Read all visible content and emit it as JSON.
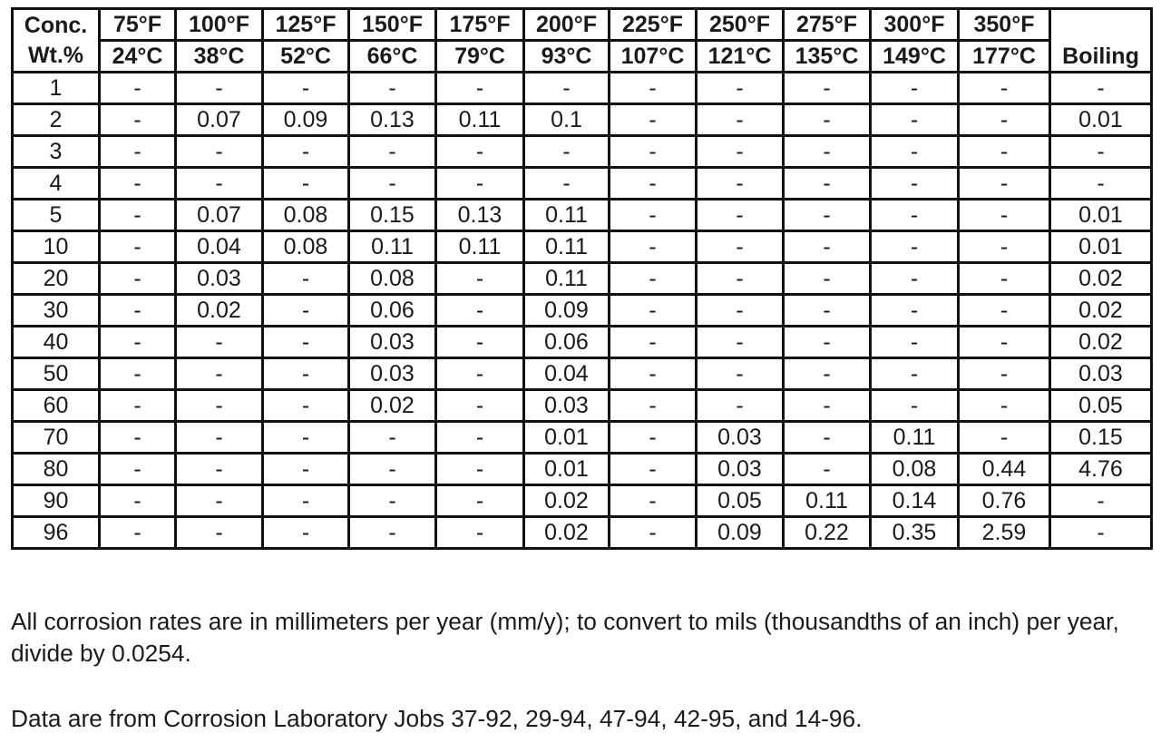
{
  "table": {
    "header": {
      "conc": [
        "Conc.",
        "Wt.%"
      ],
      "columns": [
        {
          "f": "75°F",
          "c": "24°C"
        },
        {
          "f": "100°F",
          "c": "38°C"
        },
        {
          "f": "125°F",
          "c": "52°C"
        },
        {
          "f": "150°F",
          "c": "66°C"
        },
        {
          "f": "175°F",
          "c": "79°C"
        },
        {
          "f": "200°F",
          "c": "93°C"
        },
        {
          "f": "225°F",
          "c": "107°C"
        },
        {
          "f": "250°F",
          "c": "121°C"
        },
        {
          "f": "275°F",
          "c": "135°C"
        },
        {
          "f": "300°F",
          "c": "149°C"
        },
        {
          "f": "350°F",
          "c": "177°C"
        }
      ],
      "boiling": "Boiling"
    },
    "rows": [
      [
        "1",
        "-",
        "-",
        "-",
        "-",
        "-",
        "-",
        "-",
        "-",
        "-",
        "-",
        "-",
        "-"
      ],
      [
        "2",
        "-",
        "0.07",
        "0.09",
        "0.13",
        "0.11",
        "0.1",
        "-",
        "-",
        "-",
        "-",
        "-",
        "0.01"
      ],
      [
        "3",
        "-",
        "-",
        "-",
        "-",
        "-",
        "-",
        "-",
        "-",
        "-",
        "-",
        "-",
        "-"
      ],
      [
        "4",
        "-",
        "-",
        "-",
        "-",
        "-",
        "-",
        "-",
        "-",
        "-",
        "-",
        "-",
        "-"
      ],
      [
        "5",
        "-",
        "0.07",
        "0.08",
        "0.15",
        "0.13",
        "0.11",
        "-",
        "-",
        "-",
        "-",
        "-",
        "0.01"
      ],
      [
        "10",
        "-",
        "0.04",
        "0.08",
        "0.11",
        "0.11",
        "0.11",
        "-",
        "-",
        "-",
        "-",
        "-",
        "0.01"
      ],
      [
        "20",
        "-",
        "0.03",
        "-",
        "0.08",
        "-",
        "0.11",
        "-",
        "-",
        "-",
        "-",
        "-",
        "0.02"
      ],
      [
        "30",
        "-",
        "0.02",
        "-",
        "0.06",
        "-",
        "0.09",
        "-",
        "-",
        "-",
        "-",
        "-",
        "0.02"
      ],
      [
        "40",
        "-",
        "-",
        "-",
        "0.03",
        "-",
        "0.06",
        "-",
        "-",
        "-",
        "-",
        "-",
        "0.02"
      ],
      [
        "50",
        "-",
        "-",
        "-",
        "0.03",
        "-",
        "0.04",
        "-",
        "-",
        "-",
        "-",
        "-",
        "0.03"
      ],
      [
        "60",
        "-",
        "-",
        "-",
        "0.02",
        "-",
        "0.03",
        "-",
        "-",
        "-",
        "-",
        "-",
        "0.05"
      ],
      [
        "70",
        "-",
        "-",
        "-",
        "-",
        "-",
        "0.01",
        "-",
        "0.03",
        "-",
        "0.11",
        "-",
        "0.15"
      ],
      [
        "80",
        "-",
        "-",
        "-",
        "-",
        "-",
        "0.01",
        "-",
        "0.03",
        "-",
        "0.08",
        "0.44",
        "4.76"
      ],
      [
        "90",
        "-",
        "-",
        "-",
        "-",
        "-",
        "0.02",
        "-",
        "0.05",
        "0.11",
        "0.14",
        "0.76",
        "-"
      ],
      [
        "96",
        "-",
        "-",
        "-",
        "-",
        "-",
        "0.02",
        "-",
        "0.09",
        "0.22",
        "0.35",
        "2.59",
        "-"
      ]
    ]
  },
  "notes": [
    "All corrosion rates are in millimeters per year (mm/y); to convert to mils (thousandths of an inch) per year, divide by 0.0254.",
    "Data are from Corrosion Laboratory Jobs 37-92, 29-94, 47-94, 42-95, and 14-96."
  ]
}
